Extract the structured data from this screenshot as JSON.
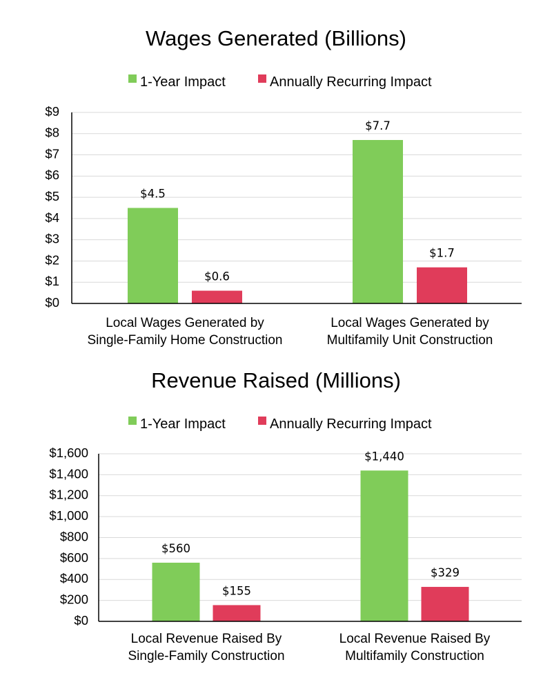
{
  "colors": {
    "one_year": "#80CC59",
    "recurring": "#E03C5A",
    "grid": "#D9D9D9",
    "axis": "#000000"
  },
  "chart_data": [
    {
      "type": "bar",
      "title": "Wages Generated (Billions)",
      "legend": [
        "1-Year Impact",
        "Annually Recurring Impact"
      ],
      "legend_position": "top",
      "categories": [
        [
          "Local Wages Generated by",
          "Single-Family Home Construction"
        ],
        [
          "Local Wages Generated by",
          "Multifamily Unit Construction"
        ]
      ],
      "series": [
        {
          "name": "1-Year Impact",
          "values": [
            4.5,
            7.7
          ],
          "labels": [
            "$4.5",
            "$7.7"
          ]
        },
        {
          "name": "Annually Recurring Impact",
          "values": [
            0.6,
            1.7
          ],
          "labels": [
            "$0.6",
            "$1.7"
          ]
        }
      ],
      "ylim": [
        0,
        9
      ],
      "yticks": [
        0,
        1,
        2,
        3,
        4,
        5,
        6,
        7,
        8,
        9
      ],
      "ytick_labels": [
        "$0",
        "$1",
        "$2",
        "$3",
        "$4",
        "$5",
        "$6",
        "$7",
        "$8",
        "$9"
      ],
      "grid": true
    },
    {
      "type": "bar",
      "title": "Revenue Raised (Millions)",
      "legend": [
        "1-Year Impact",
        "Annually Recurring Impact"
      ],
      "legend_position": "top",
      "categories": [
        [
          "Local Revenue Raised By",
          "Single-Family Construction"
        ],
        [
          "Local Revenue Raised By",
          "Multifamily Construction"
        ]
      ],
      "series": [
        {
          "name": "1-Year Impact",
          "values": [
            560,
            1440
          ],
          "labels": [
            "$560",
            "$1,440"
          ]
        },
        {
          "name": "Annually Recurring Impact",
          "values": [
            155,
            329
          ],
          "labels": [
            "$155",
            "$329"
          ]
        }
      ],
      "ylim": [
        0,
        1600
      ],
      "yticks": [
        0,
        200,
        400,
        600,
        800,
        1000,
        1200,
        1400,
        1600
      ],
      "ytick_labels": [
        "$0",
        "$200",
        "$400",
        "$600",
        "$800",
        "$1,000",
        "$1,200",
        "$1,400",
        "$1,600"
      ],
      "grid": true
    }
  ]
}
